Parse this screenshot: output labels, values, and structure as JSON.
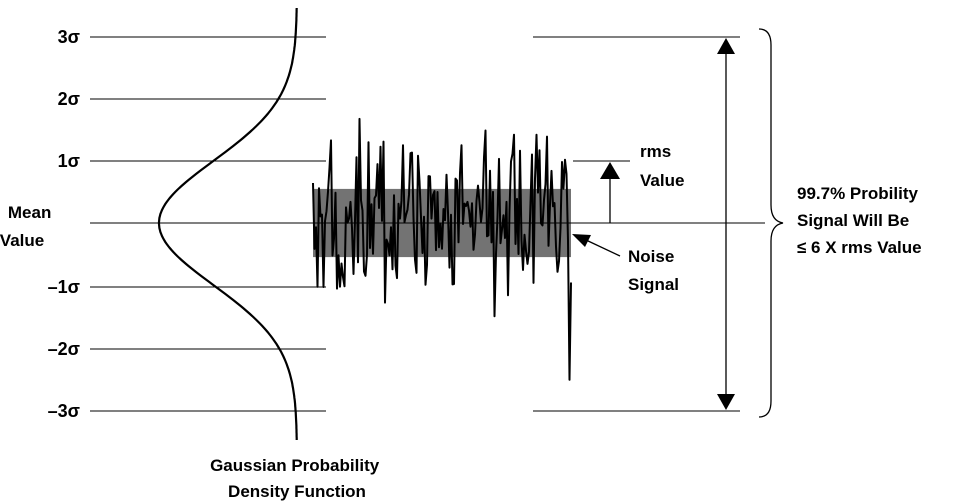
{
  "sigma_levels": [
    {
      "label": "3σ",
      "value": 3
    },
    {
      "label": "2σ",
      "value": 2
    },
    {
      "label": "1σ",
      "value": 1
    },
    {
      "label": "–1σ",
      "value": -1
    },
    {
      "label": "–2σ",
      "value": -2
    },
    {
      "label": "–3σ",
      "value": -3
    }
  ],
  "mean_label": [
    "Mean",
    "Value"
  ],
  "rms_label": [
    "rms",
    "Value"
  ],
  "noise_label": [
    "Noise",
    "Signal"
  ],
  "probability_label": [
    "99.7% Probility",
    "Signal Will Be",
    "≤ 6 X rms Value"
  ],
  "gaussian_label": [
    "Gaussian Probability",
    "Density Function"
  ],
  "colors": {
    "ink": "#000000",
    "background": "#ffffff"
  }
}
